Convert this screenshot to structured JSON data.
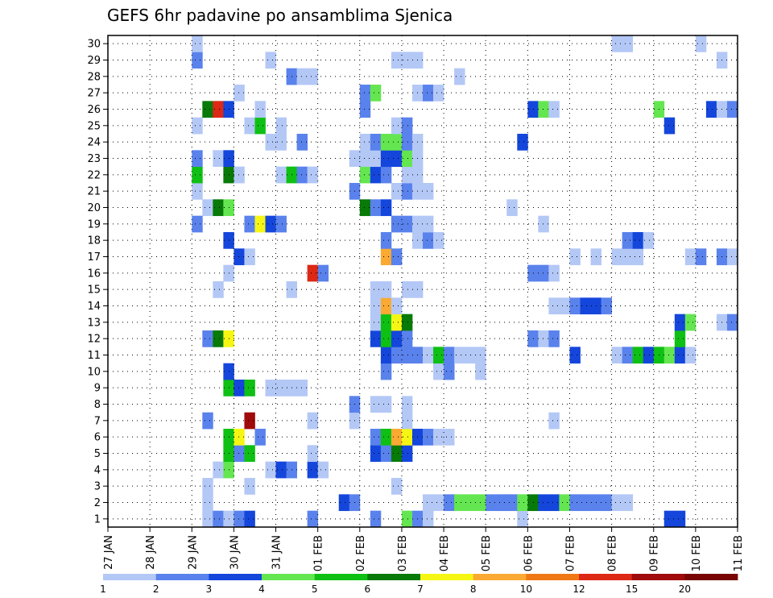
{
  "chart_data": {
    "type": "heatmap",
    "title": "GEFS 6hr padavine po ansamblima Sjenica",
    "xlabel": "",
    "ylabel": "",
    "x_ticks": [
      "27 JAN",
      "28 JAN",
      "29 JAN",
      "30 JAN",
      "31 JAN",
      "01 FEB",
      "02 FEB",
      "03 FEB",
      "04 FEB",
      "05 FEB",
      "06 FEB",
      "07 FEB",
      "08 FEB",
      "09 FEB",
      "10 FEB",
      "11 FEB"
    ],
    "y_ticks": [
      "1",
      "2",
      "3",
      "4",
      "5",
      "6",
      "7",
      "8",
      "9",
      "10",
      "11",
      "12",
      "13",
      "14",
      "15",
      "16",
      "17",
      "18",
      "19",
      "20",
      "21",
      "22",
      "23",
      "24",
      "25",
      "26",
      "27",
      "28",
      "29",
      "30"
    ],
    "x_range": [
      0,
      60
    ],
    "y_range": [
      0,
      30
    ],
    "grid": true,
    "colorbar": {
      "labels": [
        "1",
        "2",
        "3",
        "4",
        "5",
        "6",
        "7",
        "8",
        "10",
        "12",
        "15",
        "20"
      ],
      "colors": [
        "#b4c8f6",
        "#5a82ec",
        "#1446dc",
        "#64e650",
        "#0ec014",
        "#087a08",
        "#f6f614",
        "#faaa32",
        "#f07814",
        "#dc2814",
        "#a00a0a",
        "#780404"
      ]
    },
    "cells": [
      [
        9,
        0,
        1
      ],
      [
        10,
        0,
        2
      ],
      [
        11,
        0,
        1
      ],
      [
        12,
        0,
        2
      ],
      [
        13,
        0,
        3
      ],
      [
        19,
        0,
        2
      ],
      [
        25,
        0,
        2
      ],
      [
        39,
        0,
        1
      ],
      [
        53,
        0,
        3
      ],
      [
        54,
        0,
        3
      ],
      [
        28,
        0,
        4
      ],
      [
        29,
        0,
        2
      ],
      [
        30,
        0,
        1
      ],
      [
        9,
        1,
        1
      ],
      [
        22,
        1,
        3
      ],
      [
        23,
        1,
        2
      ],
      [
        30,
        1,
        1
      ],
      [
        31,
        1,
        1
      ],
      [
        32,
        1,
        2
      ],
      [
        33,
        1,
        4
      ],
      [
        34,
        1,
        4
      ],
      [
        35,
        1,
        4
      ],
      [
        36,
        1,
        2
      ],
      [
        37,
        1,
        2
      ],
      [
        38,
        1,
        2
      ],
      [
        39,
        1,
        4
      ],
      [
        40,
        1,
        6
      ],
      [
        41,
        1,
        3
      ],
      [
        42,
        1,
        3
      ],
      [
        43,
        1,
        4
      ],
      [
        44,
        1,
        2
      ],
      [
        45,
        1,
        2
      ],
      [
        46,
        1,
        2
      ],
      [
        47,
        1,
        2
      ],
      [
        48,
        1,
        1
      ],
      [
        49,
        1,
        1
      ],
      [
        9,
        2,
        1
      ],
      [
        13,
        2,
        1
      ],
      [
        27,
        2,
        1
      ],
      [
        10,
        3,
        1
      ],
      [
        11,
        3,
        4
      ],
      [
        15,
        3,
        1
      ],
      [
        16,
        3,
        3
      ],
      [
        17,
        3,
        2
      ],
      [
        19,
        3,
        3
      ],
      [
        20,
        3,
        1
      ],
      [
        11,
        4,
        5
      ],
      [
        12,
        4,
        2
      ],
      [
        13,
        4,
        5
      ],
      [
        19,
        4,
        1
      ],
      [
        25,
        4,
        3
      ],
      [
        26,
        4,
        2
      ],
      [
        27,
        4,
        6
      ],
      [
        28,
        4,
        3
      ],
      [
        11,
        5,
        5
      ],
      [
        12,
        5,
        7
      ],
      [
        14,
        5,
        2
      ],
      [
        25,
        5,
        2
      ],
      [
        26,
        5,
        5
      ],
      [
        27,
        5,
        8
      ],
      [
        28,
        5,
        7
      ],
      [
        29,
        5,
        3
      ],
      [
        30,
        5,
        2
      ],
      [
        31,
        5,
        1
      ],
      [
        32,
        5,
        1
      ],
      [
        9,
        6,
        2
      ],
      [
        13,
        6,
        11
      ],
      [
        19,
        6,
        1
      ],
      [
        23,
        6,
        1
      ],
      [
        28,
        6,
        1
      ],
      [
        42,
        6,
        1
      ],
      [
        23,
        7,
        2
      ],
      [
        25,
        7,
        1
      ],
      [
        26,
        7,
        1
      ],
      [
        28,
        7,
        1
      ],
      [
        11,
        8,
        5
      ],
      [
        12,
        8,
        3
      ],
      [
        13,
        8,
        5
      ],
      [
        15,
        8,
        1
      ],
      [
        16,
        8,
        1
      ],
      [
        17,
        8,
        1
      ],
      [
        18,
        8,
        1
      ],
      [
        11,
        9,
        3
      ],
      [
        26,
        9,
        2
      ],
      [
        31,
        9,
        1
      ],
      [
        32,
        9,
        2
      ],
      [
        35,
        9,
        1
      ],
      [
        26,
        10,
        3
      ],
      [
        27,
        10,
        2
      ],
      [
        28,
        10,
        2
      ],
      [
        29,
        10,
        2
      ],
      [
        30,
        10,
        1
      ],
      [
        31,
        10,
        5
      ],
      [
        32,
        10,
        2
      ],
      [
        33,
        10,
        1
      ],
      [
        34,
        10,
        1
      ],
      [
        35,
        10,
        1
      ],
      [
        44,
        10,
        3
      ],
      [
        48,
        10,
        1
      ],
      [
        49,
        10,
        2
      ],
      [
        50,
        10,
        5
      ],
      [
        51,
        10,
        3
      ],
      [
        52,
        10,
        5
      ],
      [
        53,
        10,
        4
      ],
      [
        54,
        10,
        3
      ],
      [
        55,
        10,
        1
      ],
      [
        9,
        11,
        2
      ],
      [
        10,
        11,
        6
      ],
      [
        11,
        11,
        7
      ],
      [
        25,
        11,
        3
      ],
      [
        26,
        11,
        5
      ],
      [
        27,
        11,
        3
      ],
      [
        28,
        11,
        2
      ],
      [
        40,
        11,
        2
      ],
      [
        41,
        11,
        1
      ],
      [
        42,
        11,
        2
      ],
      [
        54,
        11,
        5
      ],
      [
        25,
        12,
        1
      ],
      [
        26,
        12,
        5
      ],
      [
        27,
        12,
        7
      ],
      [
        28,
        12,
        6
      ],
      [
        54,
        12,
        3
      ],
      [
        55,
        12,
        4
      ],
      [
        58,
        12,
        1
      ],
      [
        59,
        12,
        2
      ],
      [
        25,
        13,
        1
      ],
      [
        26,
        13,
        8
      ],
      [
        27,
        13,
        1
      ],
      [
        42,
        13,
        1
      ],
      [
        43,
        13,
        1
      ],
      [
        44,
        13,
        2
      ],
      [
        45,
        13,
        3
      ],
      [
        46,
        13,
        3
      ],
      [
        47,
        13,
        2
      ],
      [
        10,
        14,
        1
      ],
      [
        17,
        14,
        1
      ],
      [
        25,
        14,
        1
      ],
      [
        26,
        14,
        1
      ],
      [
        28,
        14,
        1
      ],
      [
        29,
        14,
        1
      ],
      [
        11,
        15,
        1
      ],
      [
        19,
        15,
        10
      ],
      [
        20,
        15,
        2
      ],
      [
        40,
        15,
        2
      ],
      [
        41,
        15,
        2
      ],
      [
        42,
        15,
        1
      ],
      [
        12,
        16,
        3
      ],
      [
        13,
        16,
        1
      ],
      [
        26,
        16,
        8
      ],
      [
        27,
        16,
        2
      ],
      [
        44,
        16,
        1
      ],
      [
        46,
        16,
        1
      ],
      [
        48,
        16,
        1
      ],
      [
        49,
        16,
        1
      ],
      [
        50,
        16,
        1
      ],
      [
        55,
        16,
        1
      ],
      [
        56,
        16,
        2
      ],
      [
        58,
        16,
        2
      ],
      [
        59,
        16,
        1
      ],
      [
        11,
        17,
        3
      ],
      [
        26,
        17,
        2
      ],
      [
        29,
        17,
        1
      ],
      [
        30,
        17,
        2
      ],
      [
        31,
        17,
        1
      ],
      [
        49,
        17,
        2
      ],
      [
        50,
        17,
        3
      ],
      [
        51,
        17,
        1
      ],
      [
        8,
        18,
        2
      ],
      [
        13,
        18,
        2
      ],
      [
        14,
        18,
        7
      ],
      [
        15,
        18,
        3
      ],
      [
        16,
        18,
        2
      ],
      [
        27,
        18,
        2
      ],
      [
        28,
        18,
        2
      ],
      [
        29,
        18,
        1
      ],
      [
        30,
        18,
        1
      ],
      [
        41,
        18,
        1
      ],
      [
        9,
        19,
        1
      ],
      [
        10,
        19,
        6
      ],
      [
        11,
        19,
        4
      ],
      [
        24,
        19,
        6
      ],
      [
        25,
        19,
        2
      ],
      [
        26,
        19,
        3
      ],
      [
        38,
        19,
        1
      ],
      [
        8,
        20,
        1
      ],
      [
        23,
        20,
        2
      ],
      [
        27,
        20,
        1
      ],
      [
        28,
        20,
        2
      ],
      [
        29,
        20,
        1
      ],
      [
        30,
        20,
        1
      ],
      [
        8,
        21,
        5
      ],
      [
        11,
        21,
        6
      ],
      [
        12,
        21,
        1
      ],
      [
        16,
        21,
        1
      ],
      [
        17,
        21,
        5
      ],
      [
        18,
        21,
        2
      ],
      [
        19,
        21,
        1
      ],
      [
        24,
        21,
        4
      ],
      [
        25,
        21,
        3
      ],
      [
        26,
        21,
        2
      ],
      [
        28,
        21,
        1
      ],
      [
        29,
        21,
        1
      ],
      [
        8,
        22,
        2
      ],
      [
        10,
        22,
        1
      ],
      [
        11,
        22,
        3
      ],
      [
        23,
        22,
        1
      ],
      [
        24,
        22,
        1
      ],
      [
        25,
        22,
        1
      ],
      [
        26,
        22,
        3
      ],
      [
        27,
        22,
        3
      ],
      [
        28,
        22,
        4
      ],
      [
        29,
        22,
        1
      ],
      [
        15,
        23,
        1
      ],
      [
        16,
        23,
        1
      ],
      [
        18,
        23,
        2
      ],
      [
        24,
        23,
        1
      ],
      [
        25,
        23,
        2
      ],
      [
        26,
        23,
        4
      ],
      [
        27,
        23,
        4
      ],
      [
        28,
        23,
        2
      ],
      [
        29,
        23,
        1
      ],
      [
        39,
        23,
        3
      ],
      [
        8,
        24,
        1
      ],
      [
        13,
        24,
        1
      ],
      [
        14,
        24,
        5
      ],
      [
        16,
        24,
        1
      ],
      [
        27,
        24,
        1
      ],
      [
        28,
        24,
        2
      ],
      [
        53,
        24,
        3
      ],
      [
        9,
        25,
        6
      ],
      [
        10,
        25,
        10
      ],
      [
        11,
        25,
        3
      ],
      [
        14,
        25,
        1
      ],
      [
        24,
        25,
        2
      ],
      [
        40,
        25,
        3
      ],
      [
        41,
        25,
        4
      ],
      [
        42,
        25,
        1
      ],
      [
        52,
        25,
        4
      ],
      [
        57,
        25,
        3
      ],
      [
        58,
        25,
        1
      ],
      [
        59,
        25,
        2
      ],
      [
        12,
        26,
        1
      ],
      [
        24,
        26,
        2
      ],
      [
        25,
        26,
        4
      ],
      [
        29,
        26,
        1
      ],
      [
        30,
        26,
        2
      ],
      [
        31,
        26,
        1
      ],
      [
        17,
        27,
        2
      ],
      [
        18,
        27,
        1
      ],
      [
        19,
        27,
        1
      ],
      [
        33,
        27,
        1
      ],
      [
        8,
        28,
        2
      ],
      [
        15,
        28,
        1
      ],
      [
        27,
        28,
        1
      ],
      [
        28,
        28,
        1
      ],
      [
        29,
        28,
        1
      ],
      [
        58,
        28,
        1
      ],
      [
        8,
        29,
        1
      ],
      [
        48,
        29,
        1
      ],
      [
        49,
        29,
        1
      ],
      [
        56,
        29,
        1
      ]
    ]
  }
}
